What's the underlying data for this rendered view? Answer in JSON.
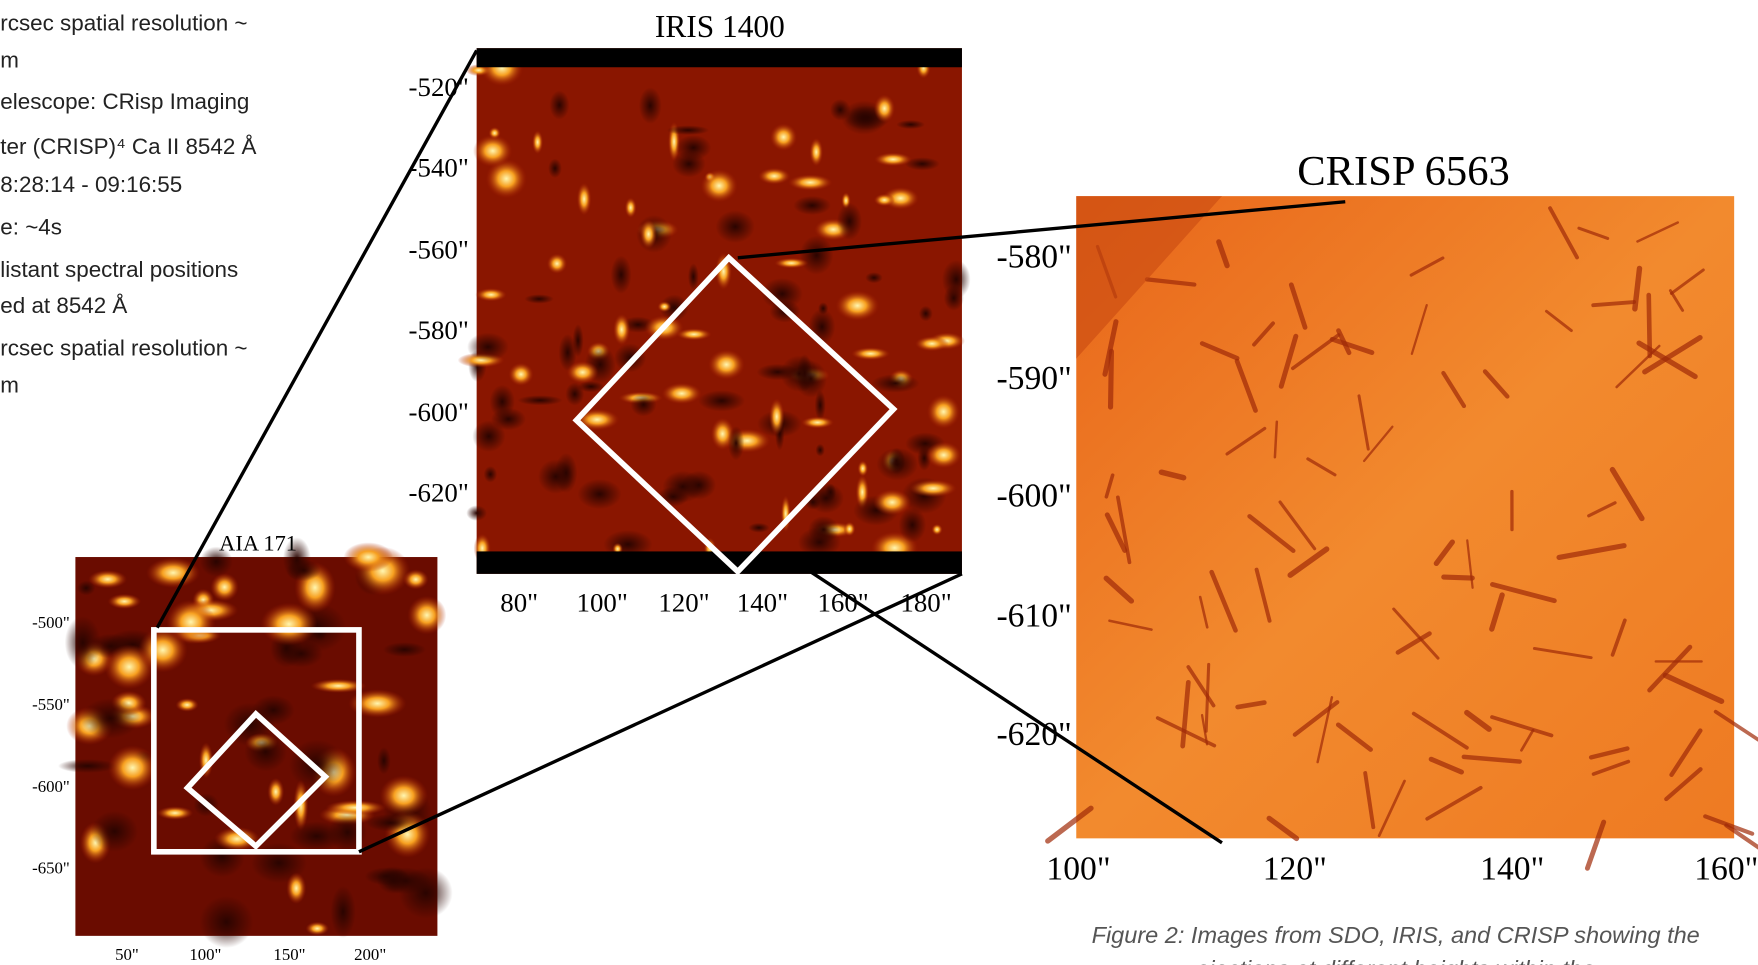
{
  "left_text": {
    "lines": [
      "rcsec spatial resolution ~",
      "m",
      "elescope: CRisp Imaging",
      "ter  (CRISP)⁴ Ca II 8542 Å",
      "8:28:14  - 09:16:55",
      "e: ~4s",
      "listant spectral positions",
      "ed at 8542 Å",
      "rcsec spatial resolution ~",
      "m"
    ]
  },
  "iris": {
    "title": "IRIS 1400",
    "yticks": [
      "-520\"",
      "-540\"",
      "-560\"",
      "-580\"",
      "-600\"",
      "-620\""
    ],
    "xticks": [
      "80\"",
      "100\"",
      "120\"",
      "140\"",
      "160\"",
      "180\""
    ]
  },
  "aia": {
    "title": "AIA 171",
    "yticks": [
      "-500\"",
      "-550\"",
      "-600\"",
      "-650\""
    ],
    "xticks": [
      "50\"",
      "100\"",
      "150\"",
      "200\""
    ]
  },
  "crisp": {
    "title": "CRISP 6563",
    "yticks": [
      "-580\"",
      "-590\"",
      "-600\"",
      "-610\"",
      "-620\""
    ],
    "xticks": [
      "100\"",
      "120\"",
      "140\"",
      "160\""
    ]
  },
  "caption": {
    "lines": [
      "Figure 2: Images from SDO, IRIS, and CRISP showing the",
      "ejections at different heights within the"
    ]
  }
}
